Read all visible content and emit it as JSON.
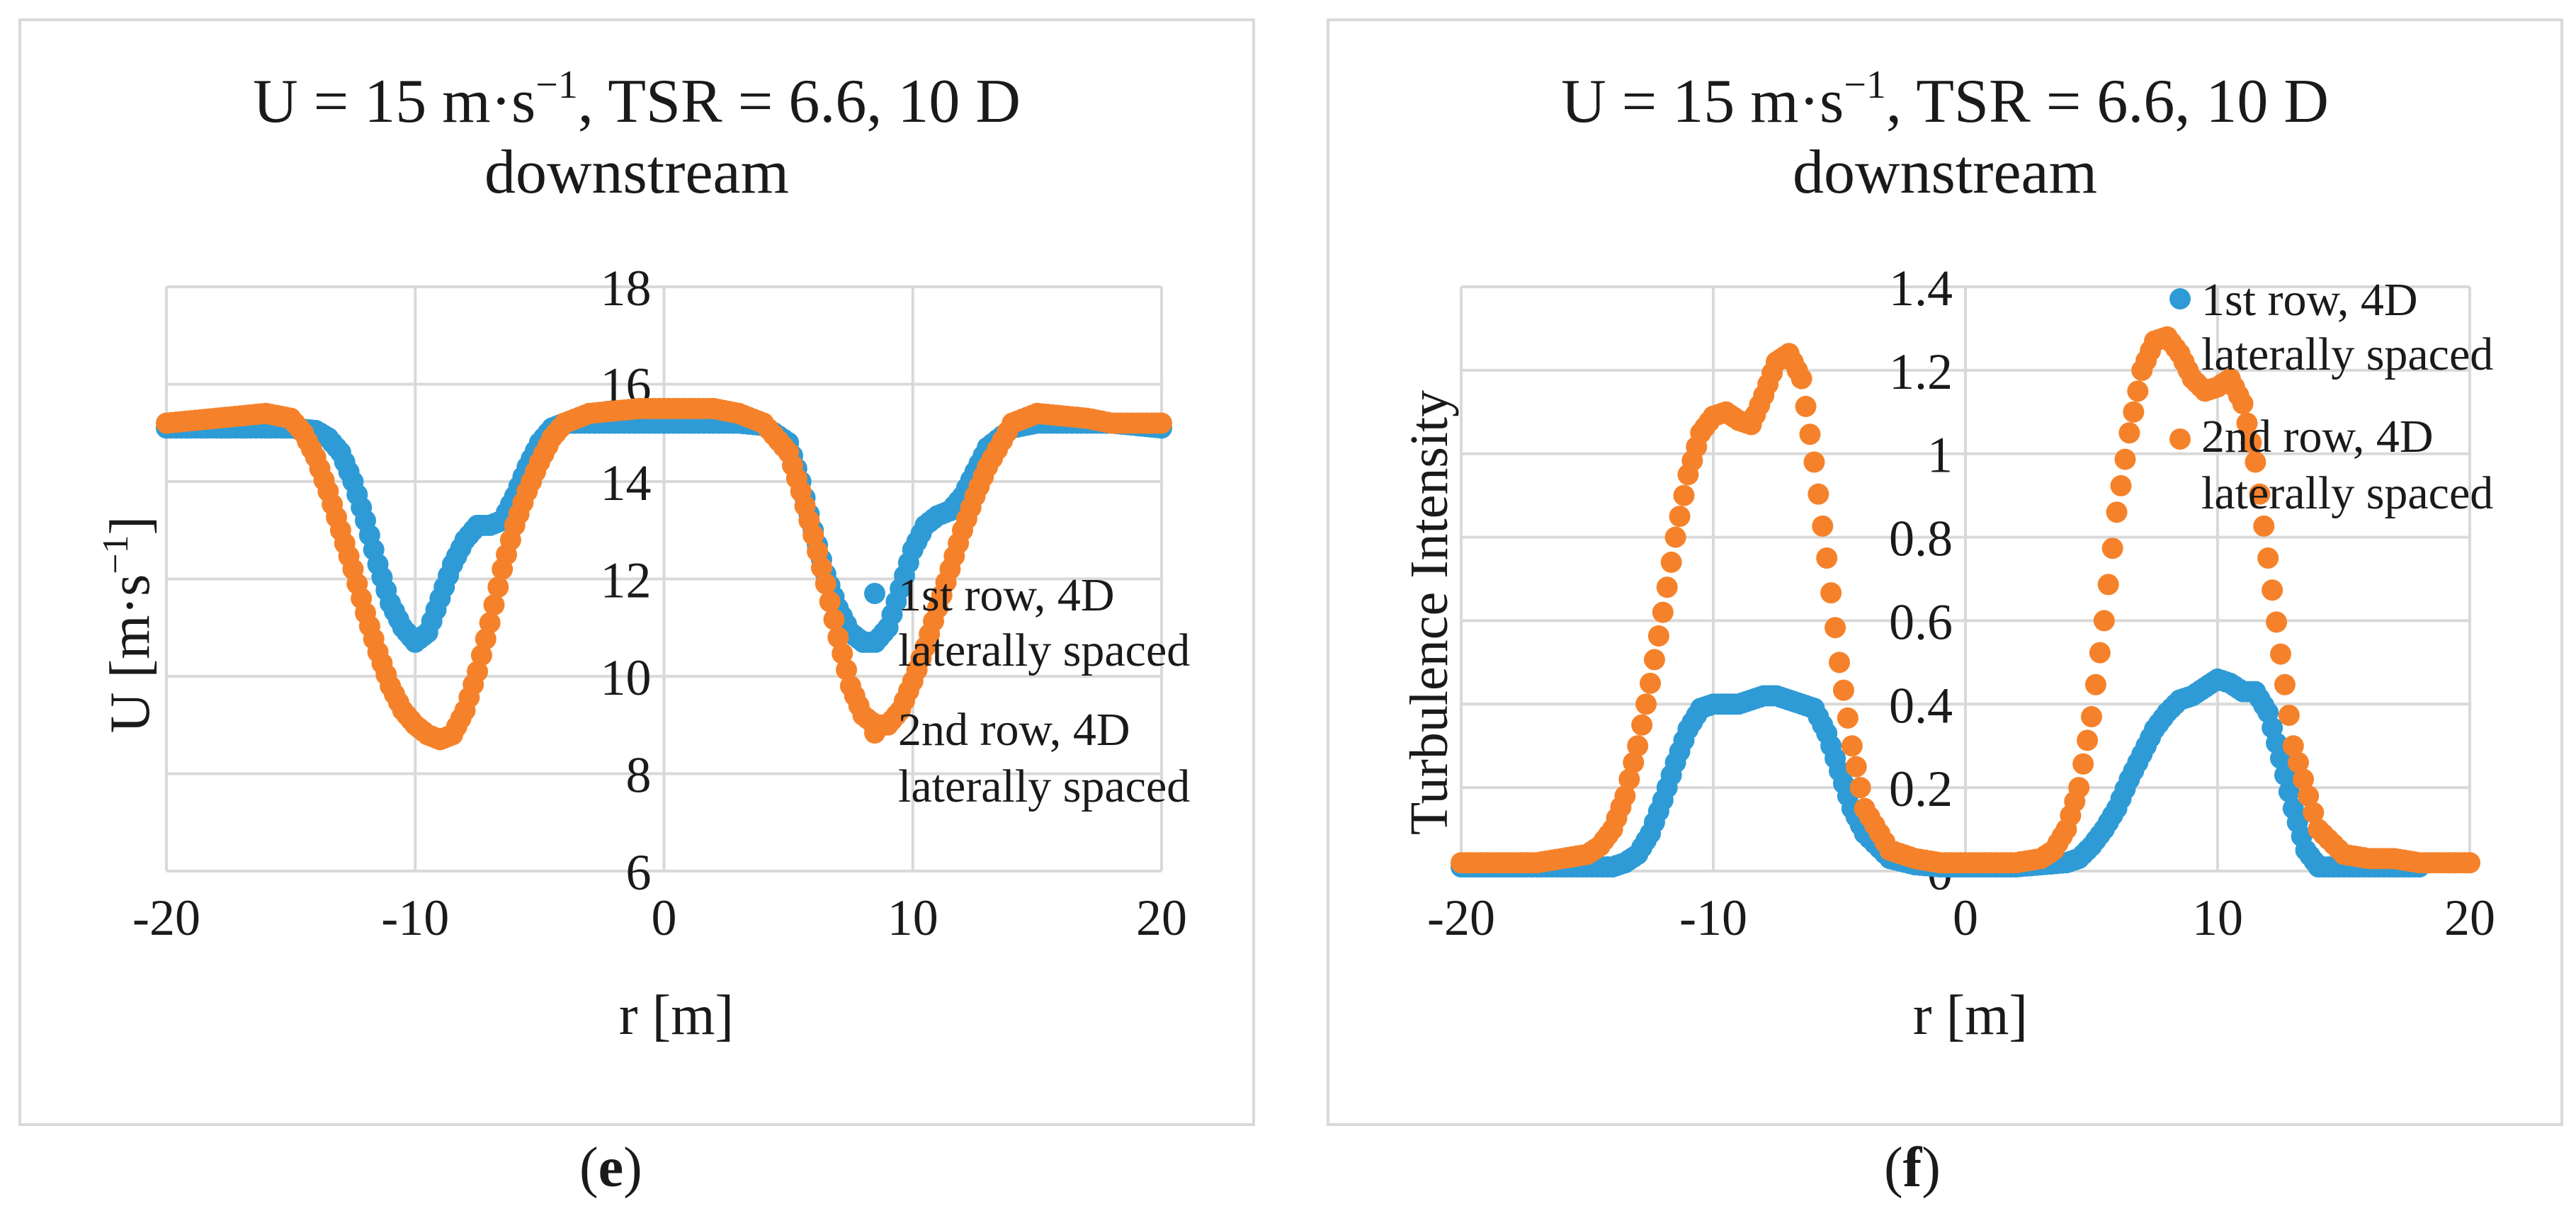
{
  "chart_data": [
    {
      "type": "scatter",
      "title_line1": "U = 15 m·s",
      "title_sup": "−1",
      "title_line1_rest": ", TSR = 6.6, 10 D",
      "title_line2": "downstream",
      "xlabel": "r [m]",
      "ylabel_main": "U [m·s",
      "ylabel_sup": "−1",
      "ylabel_end": "]",
      "xlim": [
        -20,
        20
      ],
      "ylim": [
        6,
        18
      ],
      "xticks": [
        -20,
        -10,
        0,
        10,
        20
      ],
      "yticks": [
        6,
        8,
        10,
        12,
        14,
        16,
        18
      ],
      "xtick_labels": [
        "-20",
        "-10",
        "0",
        "10",
        "20"
      ],
      "ytick_labels": [
        "6",
        "8",
        "10",
        "12",
        "14",
        "16",
        "18"
      ],
      "legend_position": "right-middle",
      "caption": "e",
      "series": [
        {
          "name": "1st row, 4D laterally spaced",
          "name_line1": "1st row, 4D",
          "name_line2": "laterally spaced",
          "color": "#2e9bd6",
          "x": [
            -20,
            -19,
            -18,
            -17,
            -16,
            -15,
            -14,
            -13.5,
            -13,
            -12.5,
            -12,
            -11.5,
            -11,
            -10.5,
            -10,
            -9.5,
            -9,
            -8.5,
            -8,
            -7.5,
            -7,
            -6.5,
            -6,
            -5.5,
            -5,
            -4.5,
            -4,
            -3,
            -2,
            -1,
            0,
            1,
            2,
            3,
            4,
            5,
            5.5,
            6,
            6.5,
            7,
            7.5,
            8,
            8.5,
            9,
            9.5,
            10,
            10.5,
            11,
            11.5,
            12,
            12.5,
            13,
            14,
            15,
            16,
            17,
            18,
            19,
            20
          ],
          "y": [
            15.1,
            15.1,
            15.1,
            15.1,
            15.1,
            15.1,
            15.05,
            14.9,
            14.6,
            14.0,
            13.2,
            12.3,
            11.5,
            11.0,
            10.7,
            10.9,
            11.6,
            12.3,
            12.8,
            13.1,
            13.1,
            13.2,
            13.7,
            14.3,
            14.8,
            15.1,
            15.2,
            15.2,
            15.2,
            15.2,
            15.2,
            15.2,
            15.2,
            15.2,
            15.15,
            14.8,
            14.0,
            13.0,
            12.1,
            11.4,
            10.9,
            10.7,
            10.7,
            11.0,
            11.8,
            12.6,
            13.1,
            13.3,
            13.4,
            13.7,
            14.2,
            14.7,
            15.1,
            15.2,
            15.2,
            15.2,
            15.2,
            15.15,
            15.1
          ]
        },
        {
          "name": "2nd row, 4D laterally spaced",
          "name_line1": "2nd row, 4D",
          "name_line2": "laterally spaced",
          "color": "#f5822a",
          "x": [
            -20,
            -19,
            -18,
            -17,
            -16,
            -15,
            -14.5,
            -14,
            -13.5,
            -13,
            -12.5,
            -12,
            -11.5,
            -11,
            -10.5,
            -10,
            -9.5,
            -9,
            -8.5,
            -8,
            -7.5,
            -7,
            -6.5,
            -6,
            -5.5,
            -5,
            -4.5,
            -4,
            -3,
            -2,
            -1,
            0,
            1,
            2,
            3,
            4,
            5,
            5.5,
            6,
            6.5,
            7,
            7.5,
            8,
            8.5,
            9,
            9.5,
            10,
            10.5,
            11,
            11.5,
            12,
            12.5,
            13,
            14,
            15,
            16,
            17,
            18,
            19,
            20
          ],
          "y": [
            15.2,
            15.25,
            15.3,
            15.35,
            15.4,
            15.3,
            15.0,
            14.5,
            13.8,
            13.0,
            12.2,
            11.3,
            10.5,
            9.8,
            9.3,
            9.0,
            8.8,
            8.7,
            8.8,
            9.3,
            10.1,
            11.1,
            12.2,
            13.1,
            13.8,
            14.4,
            14.9,
            15.2,
            15.4,
            15.45,
            15.5,
            15.5,
            15.5,
            15.5,
            15.4,
            15.2,
            14.6,
            13.8,
            12.9,
            11.9,
            10.8,
            9.8,
            9.2,
            9.0,
            9.0,
            9.3,
            9.9,
            10.6,
            11.4,
            12.2,
            13.0,
            13.7,
            14.3,
            15.2,
            15.4,
            15.35,
            15.3,
            15.2,
            15.2,
            15.2
          ]
        }
      ]
    },
    {
      "type": "scatter",
      "title_line1": "U = 15 m·s",
      "title_sup": "−1",
      "title_line1_rest": ", TSR = 6.6, 10 D",
      "title_line2": "downstream",
      "xlabel": "r [m]",
      "ylabel": "Turbulence Intensity",
      "xlim": [
        -20,
        20
      ],
      "ylim": [
        0,
        1.4
      ],
      "xticks": [
        -20,
        -10,
        0,
        10,
        20
      ],
      "yticks": [
        0,
        0.2,
        0.4,
        0.6,
        0.8,
        1,
        1.2,
        1.4
      ],
      "xtick_labels": [
        "-20",
        "-10",
        "0",
        "10",
        "20"
      ],
      "ytick_labels": [
        "0",
        "0.2",
        "0.4",
        "0.6",
        "0.8",
        "1",
        "1.2",
        "1.4"
      ],
      "legend_position": "top-right",
      "caption": "f",
      "series": [
        {
          "name": "1st row, 4D laterally spaced",
          "name_line1": "1st row, 4D",
          "name_line2": "laterally spaced",
          "color": "#2e9bd6",
          "x": [
            -20,
            -19,
            -18,
            -17,
            -16,
            -15,
            -14,
            -13.5,
            -13,
            -12.5,
            -12,
            -11.5,
            -11,
            -10.5,
            -10,
            -9.5,
            -9,
            -8.5,
            -8,
            -7.5,
            -7,
            -6.5,
            -6,
            -5.5,
            -5,
            -4.5,
            -4,
            -3,
            -2,
            -1,
            0,
            1,
            2,
            3,
            4,
            4.5,
            5,
            5.5,
            6,
            6.5,
            7,
            7.5,
            8,
            8.5,
            9,
            9.5,
            10,
            10.5,
            11,
            11.5,
            12,
            12.5,
            13,
            13.5,
            14,
            15,
            16,
            17,
            18
          ],
          "y": [
            0.01,
            0.01,
            0.01,
            0.01,
            0.01,
            0.01,
            0.01,
            0.02,
            0.04,
            0.09,
            0.17,
            0.26,
            0.34,
            0.39,
            0.4,
            0.4,
            0.4,
            0.41,
            0.42,
            0.42,
            0.41,
            0.4,
            0.39,
            0.33,
            0.24,
            0.15,
            0.09,
            0.03,
            0.015,
            0.01,
            0.01,
            0.01,
            0.01,
            0.015,
            0.02,
            0.03,
            0.06,
            0.1,
            0.15,
            0.22,
            0.28,
            0.34,
            0.38,
            0.41,
            0.42,
            0.44,
            0.46,
            0.45,
            0.43,
            0.43,
            0.38,
            0.27,
            0.15,
            0.05,
            0.01,
            0.01,
            0.01,
            0.01,
            0.01
          ]
        },
        {
          "name": "2nd row, 4D laterally spaced",
          "name_line1": "2nd row, 4D",
          "name_line2": "laterally spaced",
          "color": "#f5822a",
          "x": [
            -20,
            -19,
            -18,
            -17,
            -16,
            -15,
            -14.5,
            -14,
            -13.5,
            -13,
            -12.5,
            -12,
            -11.5,
            -11,
            -10.5,
            -10,
            -9.5,
            -9,
            -8.5,
            -8,
            -7.5,
            -7,
            -6.5,
            -6,
            -5.5,
            -5,
            -4.5,
            -4,
            -3,
            -2,
            -1,
            0,
            1,
            2,
            3,
            3.5,
            4,
            4.5,
            5,
            5.5,
            6,
            6.5,
            7,
            7.5,
            8,
            8.5,
            9,
            9.5,
            10,
            10.5,
            11,
            11.5,
            12,
            12.5,
            13,
            14,
            15,
            16,
            17,
            18,
            19,
            20
          ],
          "y": [
            0.02,
            0.02,
            0.02,
            0.02,
            0.03,
            0.04,
            0.06,
            0.1,
            0.18,
            0.3,
            0.45,
            0.62,
            0.8,
            0.95,
            1.05,
            1.09,
            1.1,
            1.08,
            1.07,
            1.14,
            1.22,
            1.24,
            1.18,
            0.98,
            0.75,
            0.5,
            0.3,
            0.15,
            0.05,
            0.03,
            0.02,
            0.02,
            0.02,
            0.02,
            0.03,
            0.05,
            0.1,
            0.2,
            0.37,
            0.6,
            0.86,
            1.05,
            1.2,
            1.27,
            1.28,
            1.24,
            1.18,
            1.15,
            1.16,
            1.18,
            1.12,
            0.98,
            0.75,
            0.52,
            0.3,
            0.1,
            0.04,
            0.03,
            0.03,
            0.02,
            0.02,
            0.02
          ]
        }
      ]
    }
  ]
}
